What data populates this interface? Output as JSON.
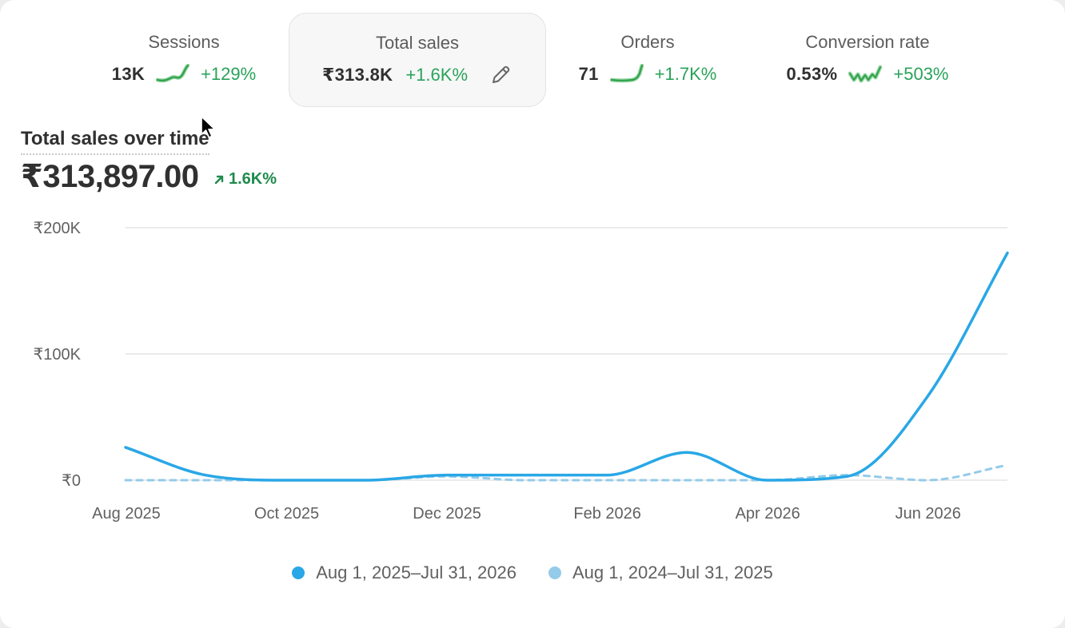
{
  "metrics": [
    {
      "label": "Sessions",
      "value": "13K",
      "delta": "+129%",
      "active": false
    },
    {
      "label": "Total sales",
      "value": "₹313.8K",
      "delta": "+1.6K%",
      "active": true
    },
    {
      "label": "Orders",
      "value": "71",
      "delta": "+1.7K%",
      "active": false
    },
    {
      "label": "Conversion rate",
      "value": "0.53%",
      "delta": "+503%",
      "active": false
    }
  ],
  "section": {
    "title": "Total sales over time",
    "total": "₹313,897.00",
    "delta": "1.6K%"
  },
  "colors": {
    "current_series": "#29a7e6",
    "previous_series": "#94cbe9",
    "positive": "#29a35a"
  },
  "icons": {
    "edit": "pencil-icon",
    "trend": "arrow-up-right-icon"
  },
  "legend": {
    "current": "Aug 1, 2025–Jul 31, 2026",
    "previous": "Aug 1, 2024–Jul 31, 2025"
  },
  "chart_data": {
    "type": "line",
    "title": "Total sales over time",
    "x_ticks": [
      "Aug 2025",
      "Oct 2025",
      "Dec 2025",
      "Feb 2026",
      "Apr 2026",
      "Jun 2026"
    ],
    "y_ticks": [
      "₹0",
      "₹100K",
      "₹200K"
    ],
    "y_tick_values": [
      0,
      100000,
      200000
    ],
    "ylim": [
      0,
      200000
    ],
    "x_months": [
      "Aug 2025",
      "Sep 2025",
      "Oct 2025",
      "Nov 2025",
      "Dec 2025",
      "Jan 2026",
      "Feb 2026",
      "Mar 2026",
      "Apr 2026",
      "May 2026",
      "Jun 2026",
      "Jul 2026"
    ],
    "grid": true,
    "legend_position": "bottom-center",
    "series": [
      {
        "name": "Aug 1, 2025–Jul 31, 2026",
        "style": "solid",
        "values": [
          26000,
          4000,
          0,
          0,
          4000,
          4000,
          4000,
          22000,
          0,
          3000,
          66000,
          180000
        ]
      },
      {
        "name": "Aug 1, 2024–Jul 31, 2025",
        "style": "dashed",
        "values": [
          0,
          0,
          0,
          0,
          3000,
          0,
          0,
          0,
          0,
          4000,
          0,
          12000
        ]
      }
    ]
  }
}
